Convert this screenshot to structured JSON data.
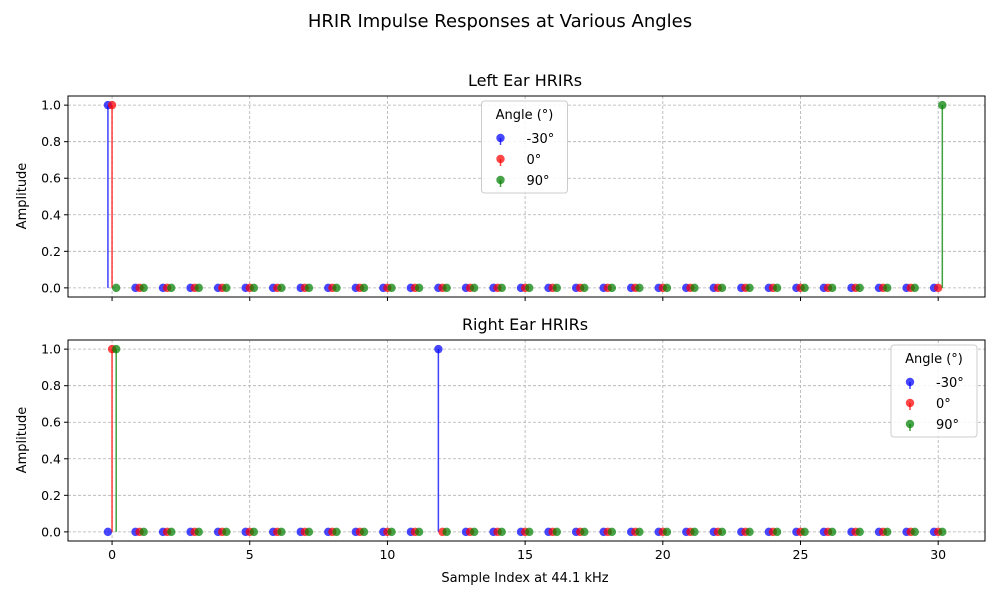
{
  "chart_data": {
    "type": "stem",
    "suptitle": "HRIR Impulse Responses at Various Angles",
    "xlabel": "Sample Index at 44.1 kHz",
    "xlim": [
      -1.6,
      31.7
    ],
    "ylim": [
      -0.05,
      1.05
    ],
    "x_ticks": [
      0,
      5,
      10,
      15,
      20,
      25,
      30
    ],
    "y_ticks": [
      0.0,
      0.2,
      0.4,
      0.6,
      0.8,
      1.0
    ],
    "grid": true,
    "n_samples": 31,
    "colors": {
      "-30°": "#0000ff",
      "0°": "#ff0000",
      "90°": "#008000"
    },
    "offsets": {
      "-30°": -0.15,
      "0°": 0.0,
      "90°": 0.15
    },
    "legend_title": "Angle (°)",
    "subplots": [
      {
        "title": "Left Ear HRIRs",
        "ylabel": "Amplitude",
        "legend_position": "upper-center",
        "series": [
          {
            "name": "-30°",
            "impulse_index": 0,
            "impulse_value": 1.0
          },
          {
            "name": "0°",
            "impulse_index": 0,
            "impulse_value": 1.0
          },
          {
            "name": "90°",
            "impulse_index": 30,
            "impulse_value": 1.0
          }
        ]
      },
      {
        "title": "Right Ear HRIRs",
        "ylabel": "Amplitude",
        "legend_position": "upper-right",
        "series": [
          {
            "name": "-30°",
            "impulse_index": 12,
            "impulse_value": 1.0
          },
          {
            "name": "0°",
            "impulse_index": 0,
            "impulse_value": 1.0
          },
          {
            "name": "90°",
            "impulse_index": 0,
            "impulse_value": 1.0
          }
        ]
      }
    ]
  }
}
